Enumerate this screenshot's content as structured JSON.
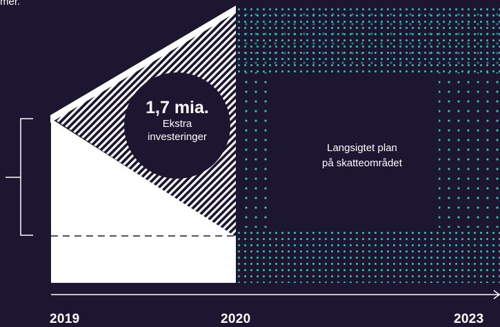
{
  "header": {
    "fragment": "mer."
  },
  "bubble": {
    "amount": "1,7 mia.",
    "line1": "Ekstra",
    "line2": "investeringer"
  },
  "plan": {
    "line1": "Langsigtet plan",
    "line2": "på skatteområdet"
  },
  "timeline": {
    "years": [
      "2019",
      "2020",
      "2023"
    ]
  },
  "colors": {
    "background": "#1c1631",
    "fill": "#ffffff",
    "dots": "#2ec4b6"
  }
}
